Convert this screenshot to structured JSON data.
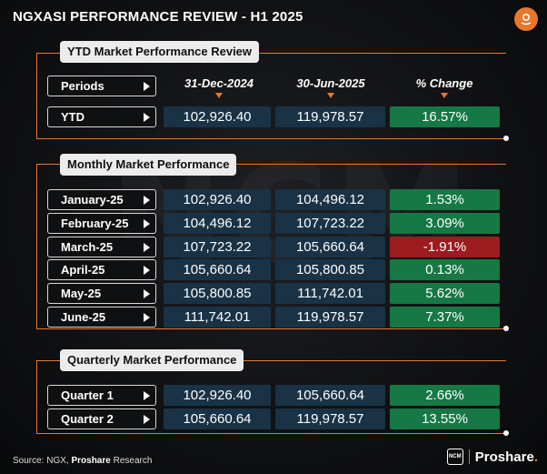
{
  "title": "NGXASI PERFORMANCE REVIEW - H1 2025",
  "watermark": "NCM",
  "ytd": {
    "header": "YTD Market Performance Review",
    "columns": [
      "31-Dec-2024",
      "30-Jun-2025",
      "% Change"
    ],
    "label_periods": "Periods",
    "row": {
      "label": "YTD",
      "start": "102,926.40",
      "end": "119,978.57",
      "change": "16.57%",
      "status": "green"
    }
  },
  "monthly": {
    "header": "Monthly Market Performance",
    "rows": [
      {
        "label": "January-25",
        "start": "102,926.40",
        "end": "104,496.12",
        "change": "1.53%",
        "status": "green"
      },
      {
        "label": "February-25",
        "start": "104,496.12",
        "end": "107,723.22",
        "change": "3.09%",
        "status": "green"
      },
      {
        "label": "March-25",
        "start": "107,723.22",
        "end": "105,660.64",
        "change": "-1.91%",
        "status": "red"
      },
      {
        "label": "April-25",
        "start": "105,660.64",
        "end": "105,800.85",
        "change": "0.13%",
        "status": "green"
      },
      {
        "label": "May-25",
        "start": "105,800.85",
        "end": "111,742.01",
        "change": "5.62%",
        "status": "green"
      },
      {
        "label": "June-25",
        "start": "111,742.01",
        "end": "119,978.57",
        "change": "7.37%",
        "status": "green"
      }
    ]
  },
  "quarterly": {
    "header": "Quarterly Market Performance",
    "rows": [
      {
        "label": "Quarter 1",
        "start": "102,926.40",
        "end": "105,660.64",
        "change": "2.66%",
        "status": "green"
      },
      {
        "label": "Quarter 2",
        "start": "105,660.64",
        "end": "119,978.57",
        "change": "13.55%",
        "status": "green"
      }
    ]
  },
  "footer": {
    "source_prefix": "Source: NGX, ",
    "source_brand": "Proshare",
    "source_suffix": " Research",
    "badge": "NCM",
    "brand": "Proshare",
    "brand_dot": "."
  },
  "colors": {
    "accent": "#e8782a",
    "cell": "#193246",
    "positive": "#167844",
    "negative": "#9c1b1f"
  },
  "icons": [
    "proshare-logo-icon",
    "arrow-right-icon",
    "triangle-down-icon"
  ]
}
